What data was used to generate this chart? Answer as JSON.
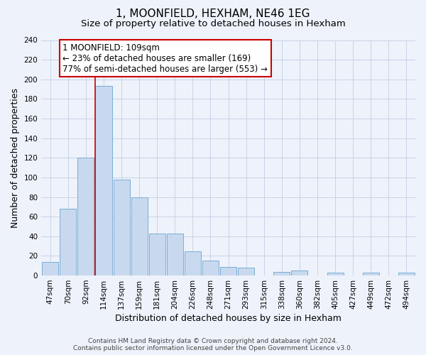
{
  "title": "1, MOONFIELD, HEXHAM, NE46 1EG",
  "subtitle": "Size of property relative to detached houses in Hexham",
  "xlabel": "Distribution of detached houses by size in Hexham",
  "ylabel": "Number of detached properties",
  "categories": [
    "47sqm",
    "70sqm",
    "92sqm",
    "114sqm",
    "137sqm",
    "159sqm",
    "181sqm",
    "204sqm",
    "226sqm",
    "248sqm",
    "271sqm",
    "293sqm",
    "315sqm",
    "338sqm",
    "360sqm",
    "382sqm",
    "405sqm",
    "427sqm",
    "449sqm",
    "472sqm",
    "494sqm"
  ],
  "values": [
    14,
    68,
    120,
    193,
    98,
    80,
    43,
    43,
    25,
    15,
    9,
    8,
    0,
    4,
    5,
    0,
    3,
    0,
    3,
    0,
    3
  ],
  "bar_color": "#c8d9ef",
  "bar_edge_color": "#7aadd4",
  "grid_color": "#c8d4e8",
  "background_color": "#eef2fa",
  "vline_x_index": 3,
  "vline_color": "#cc0000",
  "annotation_text": "1 MOONFIELD: 109sqm\n← 23% of detached houses are smaller (169)\n77% of semi-detached houses are larger (553) →",
  "annotation_box_color": "#ffffff",
  "annotation_box_edge": "#cc0000",
  "ylim": [
    0,
    240
  ],
  "yticks": [
    0,
    20,
    40,
    60,
    80,
    100,
    120,
    140,
    160,
    180,
    200,
    220,
    240
  ],
  "footer_line1": "Contains HM Land Registry data © Crown copyright and database right 2024.",
  "footer_line2": "Contains public sector information licensed under the Open Government Licence v3.0.",
  "title_fontsize": 11,
  "subtitle_fontsize": 9.5,
  "axis_label_fontsize": 9,
  "tick_fontsize": 7.5,
  "annotation_fontsize": 8.5,
  "footer_fontsize": 6.5
}
